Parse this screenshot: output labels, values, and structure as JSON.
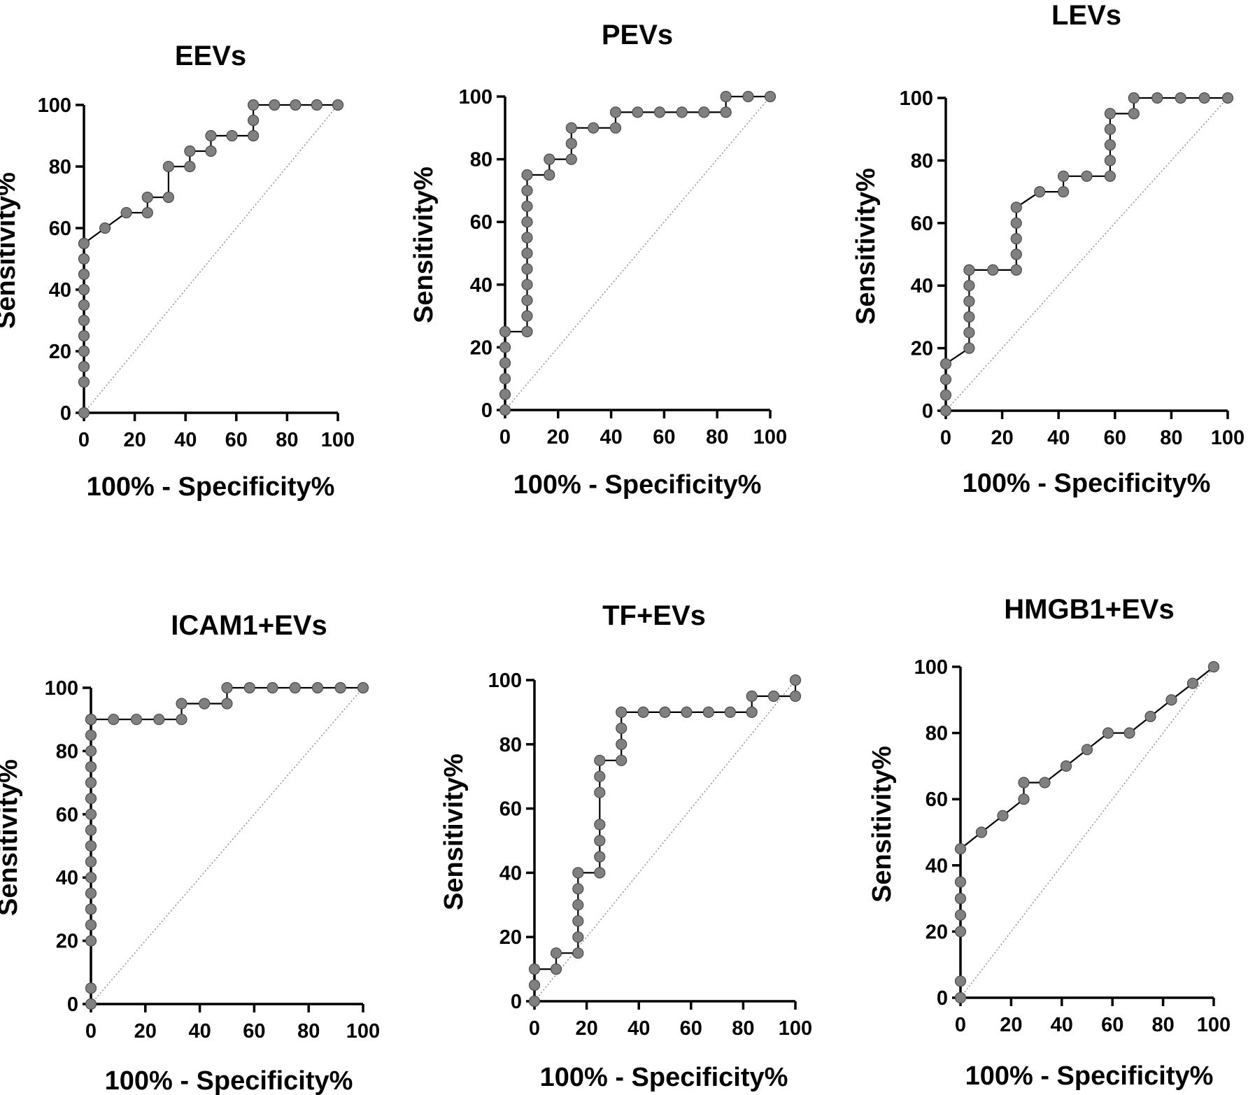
{
  "chart_data": [
    {
      "type": "line",
      "title": "EEVs",
      "xlabel": "100% - Specificity%",
      "ylabel": "Sensitivity%",
      "xlim": [
        0,
        100
      ],
      "ylim": [
        0,
        100
      ],
      "xticks": [
        "0",
        "20",
        "40",
        "60",
        "80",
        "100"
      ],
      "yticks": [
        "0",
        "20",
        "40",
        "60",
        "80",
        "100"
      ],
      "reference_line": "diagonal",
      "x": [
        0,
        0,
        0,
        0,
        0,
        0,
        0,
        0,
        0,
        0,
        0,
        0,
        8.3,
        16.7,
        25,
        25,
        33.3,
        33.3,
        41.7,
        41.7,
        50,
        50,
        58.3,
        66.7,
        66.7,
        66.7,
        75,
        83.3,
        91.7,
        100
      ],
      "y": [
        0,
        10,
        15,
        20,
        25,
        30,
        35,
        40,
        45,
        50,
        55,
        55,
        60,
        65,
        65,
        70,
        70,
        80,
        80,
        85,
        85,
        90,
        90,
        90,
        95,
        100,
        100,
        100,
        100,
        100
      ]
    },
    {
      "type": "line",
      "title": "PEVs",
      "xlabel": "100% - Specificity%",
      "ylabel": "Sensitivity%",
      "xlim": [
        0,
        100
      ],
      "ylim": [
        0,
        100
      ],
      "xticks": [
        "0",
        "20",
        "40",
        "60",
        "80",
        "100"
      ],
      "yticks": [
        "0",
        "20",
        "40",
        "60",
        "80",
        "100"
      ],
      "reference_line": "diagonal",
      "x": [
        0,
        0,
        0,
        0,
        0,
        0,
        8.3,
        8.3,
        8.3,
        8.3,
        8.3,
        8.3,
        8.3,
        8.3,
        8.3,
        8.3,
        8.3,
        16.7,
        16.7,
        25,
        25,
        25,
        33.3,
        41.7,
        41.7,
        50,
        58.3,
        66.7,
        75,
        83.3,
        83.3,
        91.7,
        100
      ],
      "y": [
        0,
        5,
        10,
        15,
        20,
        25,
        25,
        30,
        35,
        40,
        45,
        50,
        55,
        60,
        65,
        70,
        75,
        75,
        80,
        80,
        85,
        90,
        90,
        90,
        95,
        95,
        95,
        95,
        95,
        95,
        100,
        100,
        100
      ]
    },
    {
      "type": "line",
      "title": "LEVs",
      "xlabel": "100% - Specificity%",
      "ylabel": "Sensitivity%",
      "xlim": [
        0,
        100
      ],
      "ylim": [
        0,
        100
      ],
      "xticks": [
        "0",
        "20",
        "40",
        "60",
        "80",
        "100"
      ],
      "yticks": [
        "0",
        "20",
        "40",
        "60",
        "80",
        "100"
      ],
      "reference_line": "diagonal",
      "x": [
        0,
        0,
        0,
        0,
        8.3,
        8.3,
        8.3,
        8.3,
        8.3,
        8.3,
        16.7,
        25,
        25,
        25,
        25,
        25,
        33.3,
        41.7,
        41.7,
        50,
        58.3,
        58.3,
        58.3,
        58.3,
        58.3,
        66.7,
        66.7,
        75,
        83.3,
        91.7,
        100
      ],
      "y": [
        0,
        5,
        10,
        15,
        20,
        25,
        30,
        35,
        40,
        45,
        45,
        45,
        50,
        55,
        60,
        65,
        70,
        70,
        75,
        75,
        75,
        80,
        85,
        90,
        95,
        95,
        100,
        100,
        100,
        100,
        100
      ]
    },
    {
      "type": "line",
      "title": "ICAM1+EVs",
      "xlabel": "100% - Specificity%",
      "ylabel": "Sensitivity%",
      "xlim": [
        0,
        100
      ],
      "ylim": [
        0,
        100
      ],
      "xticks": [
        "0",
        "20",
        "40",
        "60",
        "80",
        "100"
      ],
      "yticks": [
        "0",
        "20",
        "40",
        "60",
        "80",
        "100"
      ],
      "reference_line": "diagonal",
      "x": [
        0,
        0,
        0,
        0,
        0,
        0,
        0,
        0,
        0,
        0,
        0,
        0,
        0,
        0,
        0,
        0,
        0,
        0,
        0,
        8.3,
        16.7,
        25,
        33.3,
        33.3,
        41.7,
        50,
        50,
        58.3,
        66.7,
        75,
        83.3,
        91.7,
        100
      ],
      "y": [
        0,
        5,
        20,
        25,
        30,
        35,
        40,
        45,
        50,
        55,
        60,
        65,
        70,
        75,
        80,
        85,
        90,
        90,
        90,
        90,
        90,
        90,
        90,
        95,
        95,
        95,
        100,
        100,
        100,
        100,
        100,
        100,
        100
      ]
    },
    {
      "type": "line",
      "title": "TF+EVs",
      "xlabel": "100% - Specificity%",
      "ylabel": "Sensitivity%",
      "xlim": [
        0,
        100
      ],
      "ylim": [
        0,
        100
      ],
      "xticks": [
        "0",
        "20",
        "40",
        "60",
        "80",
        "100"
      ],
      "yticks": [
        "0",
        "20",
        "40",
        "60",
        "80",
        "100"
      ],
      "reference_line": "diagonal",
      "x": [
        0,
        0,
        0,
        8.3,
        8.3,
        16.7,
        16.7,
        16.7,
        16.7,
        16.7,
        16.7,
        25,
        25,
        25,
        25,
        25,
        25,
        25,
        33.3,
        33.3,
        33.3,
        33.3,
        41.7,
        50,
        58.3,
        66.7,
        75,
        83.3,
        83.3,
        91.7,
        100,
        100
      ],
      "y": [
        0,
        5,
        10,
        10,
        15,
        15,
        20,
        25,
        30,
        35,
        40,
        40,
        45,
        50,
        55,
        65,
        70,
        75,
        75,
        80,
        85,
        90,
        90,
        90,
        90,
        90,
        90,
        90,
        95,
        95,
        95,
        100
      ]
    },
    {
      "type": "line",
      "title": "HMGB1+EVs",
      "xlabel": "100% - Specificity%",
      "ylabel": "Sensitivity%",
      "xlim": [
        0,
        100
      ],
      "ylim": [
        0,
        100
      ],
      "xticks": [
        "0",
        "20",
        "40",
        "60",
        "80",
        "100"
      ],
      "yticks": [
        "0",
        "20",
        "40",
        "60",
        "80",
        "100"
      ],
      "reference_line": "diagonal",
      "x": [
        0,
        0,
        0,
        0,
        0,
        0,
        0,
        8.3,
        16.7,
        25,
        25,
        33.3,
        41.7,
        50,
        58.3,
        66.7,
        75,
        83.3,
        91.7,
        100
      ],
      "y": [
        0,
        5,
        20,
        25,
        30,
        35,
        45,
        50,
        55,
        60,
        65,
        65,
        70,
        75,
        80,
        80,
        85,
        90,
        95,
        100
      ]
    }
  ]
}
